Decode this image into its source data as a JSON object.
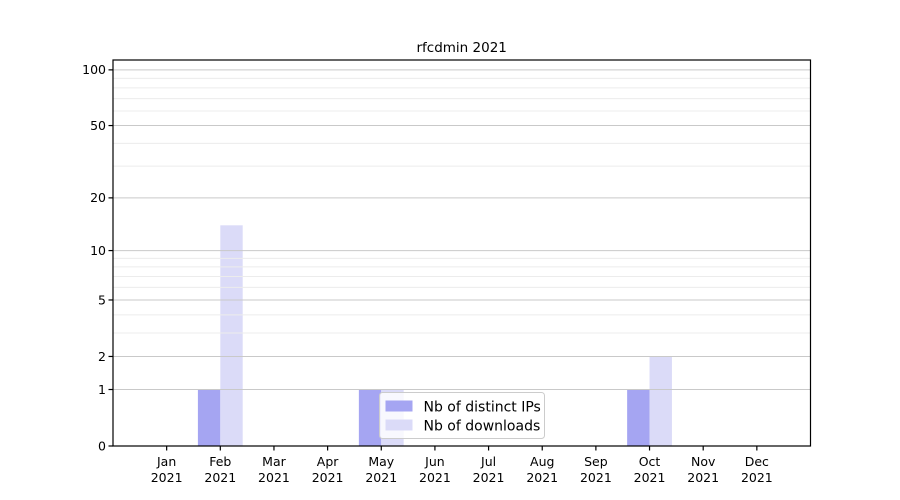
{
  "page": {
    "background": "#ffffff"
  },
  "chart_data": {
    "type": "bar",
    "title": "rfcdmin 2021",
    "categories": [
      "Jan",
      "Feb",
      "Mar",
      "Apr",
      "May",
      "Jun",
      "Jul",
      "Aug",
      "Sep",
      "Oct",
      "Nov",
      "Dec"
    ],
    "category_year": "2021",
    "series": [
      {
        "name": "Nb of distinct IPs",
        "color": "#a5a5f2",
        "values": [
          0,
          1,
          0,
          0,
          1,
          0,
          0,
          0,
          0,
          1,
          0,
          0
        ]
      },
      {
        "name": "Nb of downloads",
        "color": "#dbdbf8",
        "values": [
          0,
          14,
          0,
          0,
          1,
          0,
          0,
          0,
          0,
          2,
          0,
          0
        ]
      }
    ],
    "xlabel": "",
    "ylabel": "",
    "y_axis": {
      "scale": "log10(1+value)",
      "tick_values": [
        0,
        1,
        2,
        5,
        10,
        20,
        50,
        100
      ],
      "minor_grid_values": [
        3,
        4,
        6,
        7,
        8,
        9,
        30,
        40,
        60,
        70,
        80,
        90
      ],
      "ymax": 113
    },
    "grid": "on",
    "legend": {
      "position": "lower-center"
    },
    "colors": {
      "major_grid": "#c9c9c9",
      "minor_grid": "#ececec",
      "axis": "#000000",
      "text": "#000000",
      "legend_border": "#cccccc",
      "legend_background": "#ffffff"
    }
  }
}
